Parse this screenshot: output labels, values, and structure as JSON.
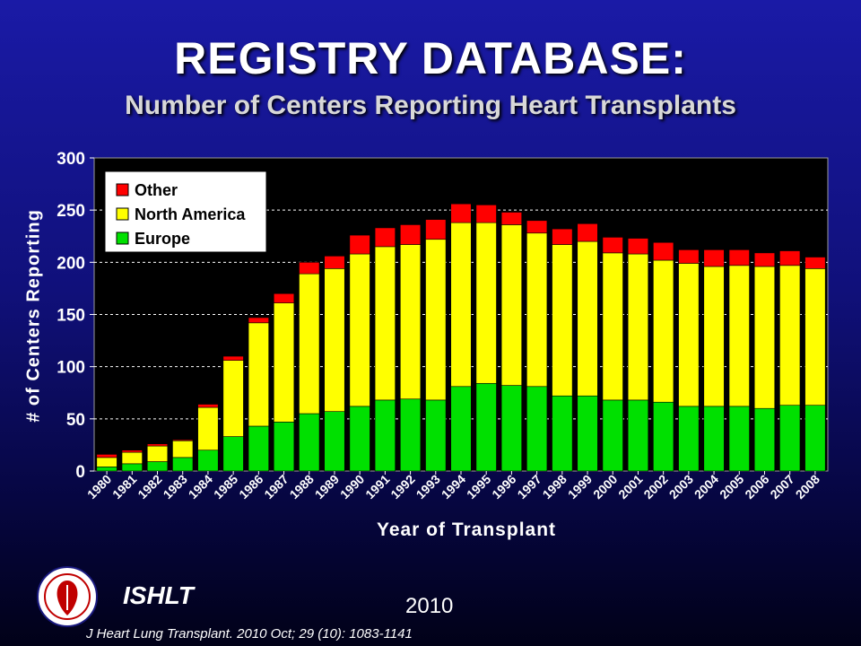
{
  "header": {
    "title": "REGISTRY DATABASE:",
    "subtitle": "Number of Centers Reporting Heart Transplants"
  },
  "chart_data": {
    "type": "bar",
    "stacked": true,
    "xlabel": "Year of Transplant",
    "ylabel": "# of Centers Reporting",
    "ylim": [
      0,
      300
    ],
    "yticks": [
      0,
      50,
      100,
      150,
      200,
      250,
      300
    ],
    "grid": "horizontal dashed",
    "legend_position": "top-left",
    "categories": [
      "1980",
      "1981",
      "1982",
      "1983",
      "1984",
      "1985",
      "1986",
      "1987",
      "1988",
      "1989",
      "1990",
      "1991",
      "1992",
      "1993",
      "1994",
      "1995",
      "1996",
      "1997",
      "1998",
      "1999",
      "2000",
      "2001",
      "2002",
      "2003",
      "2004",
      "2005",
      "2006",
      "2007",
      "2008"
    ],
    "series": [
      {
        "name": "Europe",
        "color": "#00e000",
        "values": [
          4,
          7,
          9,
          13,
          20,
          33,
          43,
          47,
          55,
          57,
          62,
          68,
          69,
          68,
          81,
          84,
          82,
          81,
          72,
          72,
          68,
          68,
          66,
          62,
          62,
          62,
          60,
          63,
          63
        ]
      },
      {
        "name": "North America",
        "color": "#ffff00",
        "values": [
          9,
          11,
          15,
          16,
          41,
          73,
          99,
          114,
          134,
          137,
          146,
          147,
          148,
          154,
          157,
          154,
          154,
          147,
          145,
          148,
          141,
          140,
          136,
          137,
          134,
          135,
          136,
          134,
          131
        ]
      },
      {
        "name": "Other",
        "color": "#ff0000",
        "values": [
          3,
          2,
          2,
          1,
          3,
          4,
          5,
          9,
          11,
          12,
          18,
          18,
          19,
          19,
          18,
          17,
          12,
          12,
          15,
          17,
          15,
          15,
          17,
          13,
          16,
          15,
          13,
          14,
          11
        ]
      }
    ]
  },
  "footer": {
    "organization": "ISHLT",
    "year": "2010",
    "citation": "J Heart Lung Transplant. 2010 Oct; 29 (10): 1083-1141",
    "logo_icon": "ishlt-seal-icon"
  }
}
